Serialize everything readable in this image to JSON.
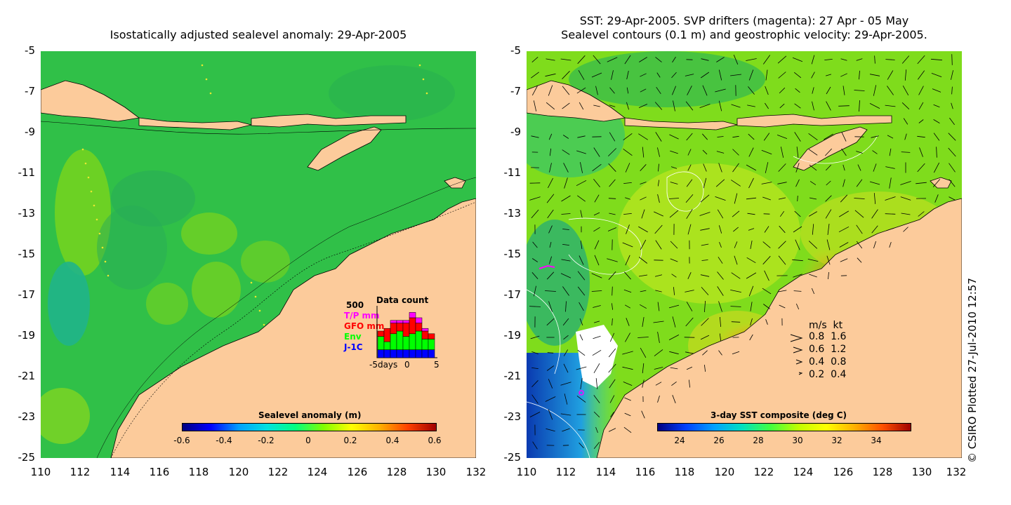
{
  "left_panel": {
    "title": "Isostatically adjusted sealevel anomaly: 29-Apr-2005",
    "colorbar": {
      "title": "Sealevel anomaly (m)",
      "ticks": [
        "-0.6",
        "-0.4",
        "-0.2",
        "0",
        "0.2",
        "0.4",
        "0.6"
      ]
    },
    "inset": {
      "ymax": "500",
      "title": "Data count",
      "series": [
        {
          "name": "T/P mm",
          "color": "#ff00ff"
        },
        {
          "name": "GFO mm",
          "color": "#ff0000"
        },
        {
          "name": "Env",
          "color": "#00ff00"
        },
        {
          "name": "J-1C",
          "color": "#0000ff"
        }
      ],
      "xlabels": [
        "-5days",
        "0",
        "5"
      ],
      "bars": [
        {
          "j1c": 0.15,
          "env": 0.25,
          "gfo": 0.1,
          "tp": 0.0
        },
        {
          "j1c": 0.15,
          "env": 0.15,
          "gfo": 0.25,
          "tp": 0.0
        },
        {
          "j1c": 0.15,
          "env": 0.3,
          "gfo": 0.2,
          "tp": 0.05
        },
        {
          "j1c": 0.15,
          "env": 0.35,
          "gfo": 0.15,
          "tp": 0.05
        },
        {
          "j1c": 0.15,
          "env": 0.25,
          "gfo": 0.25,
          "tp": 0.05
        },
        {
          "j1c": 0.15,
          "env": 0.3,
          "gfo": 0.3,
          "tp": 0.1
        },
        {
          "j1c": 0.15,
          "env": 0.35,
          "gfo": 0.15,
          "tp": 0.1
        },
        {
          "j1c": 0.15,
          "env": 0.2,
          "gfo": 0.15,
          "tp": 0.05
        },
        {
          "j1c": 0.15,
          "env": 0.2,
          "gfo": 0.1,
          "tp": 0.0
        }
      ]
    }
  },
  "right_panel": {
    "title_line1": "SST: 29-Apr-2005. SVP drifters (magenta): 27 Apr - 05 May",
    "title_line2": "Sealevel contours (0.1 m) and geostrophic velocity: 29-Apr-2005.",
    "colorbar": {
      "title": "3-day SST composite (deg C)",
      "ticks": [
        "24",
        "26",
        "28",
        "30",
        "32",
        "34"
      ]
    },
    "velocity_legend": {
      "header": "m/s  kt",
      "rows": [
        "0.8  1.6",
        "0.6  1.2",
        "0.4  0.8",
        "0.2  0.4"
      ]
    }
  },
  "axes": {
    "lat_ticks": [
      "-5",
      "-7",
      "-9",
      "-11",
      "-13",
      "-15",
      "-17",
      "-19",
      "-21",
      "-23",
      "-25"
    ],
    "lon_ticks": [
      "110",
      "112",
      "114",
      "116",
      "118",
      "120",
      "122",
      "124",
      "126",
      "128",
      "130",
      "132"
    ]
  },
  "copyright": "© CSIRO Plotted 27-Jul-2010 12:57",
  "colors": {
    "land": "#fccb9b",
    "ocean_left": "#34c34a",
    "ocean_right": "#7fdc1c",
    "warm": "#f08a10",
    "cool": "#1a7fd0"
  }
}
